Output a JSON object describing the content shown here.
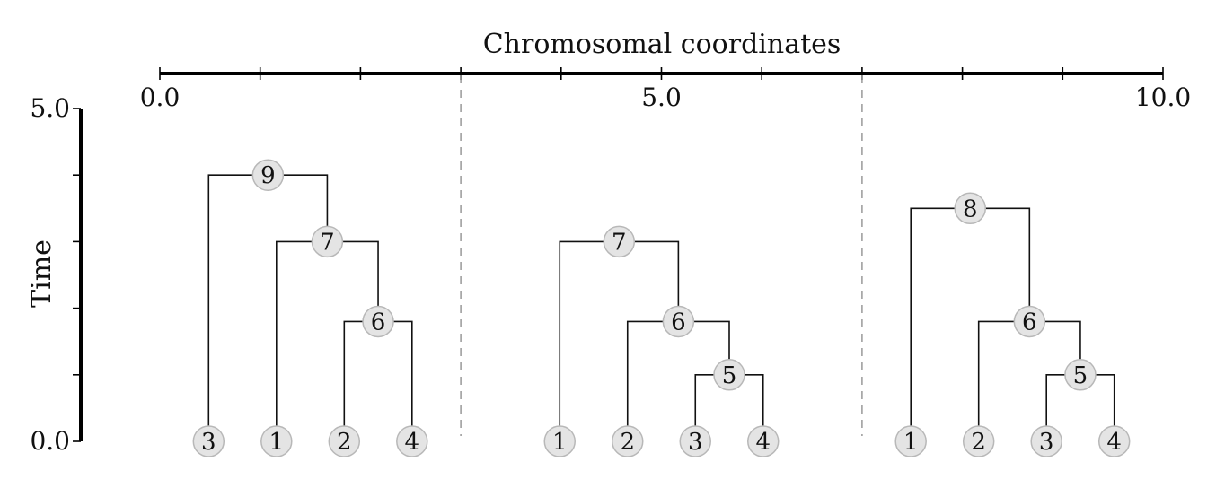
{
  "x_axis": {
    "title": "Chromosomal coordinates",
    "range": [
      0.0,
      10.0
    ],
    "tick_labels": [
      {
        "value": 0,
        "text": "0.0"
      },
      {
        "value": 5,
        "text": "5.0"
      },
      {
        "value": 10,
        "text": "10.0"
      }
    ],
    "minor_ticks": [
      1,
      2,
      3,
      4,
      6,
      7,
      8,
      9
    ]
  },
  "y_axis": {
    "title": "Time",
    "range": [
      0.0,
      5.0
    ],
    "tick_labels": [
      {
        "value": 5,
        "text": "5.0"
      },
      {
        "value": 0,
        "text": "0.0"
      }
    ],
    "minor_ticks": [
      1,
      2,
      3,
      4
    ]
  },
  "breakpoints": [
    3,
    7
  ],
  "trees": [
    {
      "interval": [
        0,
        3
      ],
      "leaves": [
        "3",
        "1",
        "2",
        "4"
      ],
      "nodes": [
        {
          "label": "3",
          "time": 0
        },
        {
          "label": "1",
          "time": 0
        },
        {
          "label": "2",
          "time": 0
        },
        {
          "label": "4",
          "time": 0
        },
        {
          "label": "6",
          "time": 1.8,
          "children": [
            "2",
            "4"
          ]
        },
        {
          "label": "7",
          "time": 3.0,
          "children": [
            "1",
            "6"
          ]
        },
        {
          "label": "9",
          "time": 4.0,
          "children": [
            "3",
            "7"
          ]
        }
      ]
    },
    {
      "interval": [
        3,
        7
      ],
      "leaves": [
        "1",
        "2",
        "3",
        "4"
      ],
      "nodes": [
        {
          "label": "1",
          "time": 0
        },
        {
          "label": "2",
          "time": 0
        },
        {
          "label": "3",
          "time": 0
        },
        {
          "label": "4",
          "time": 0
        },
        {
          "label": "5",
          "time": 1.0,
          "children": [
            "3",
            "4"
          ]
        },
        {
          "label": "6",
          "time": 1.8,
          "children": [
            "2",
            "5"
          ]
        },
        {
          "label": "7",
          "time": 3.0,
          "children": [
            "1",
            "6"
          ]
        }
      ]
    },
    {
      "interval": [
        7,
        10
      ],
      "leaves": [
        "1",
        "2",
        "3",
        "4"
      ],
      "nodes": [
        {
          "label": "1",
          "time": 0
        },
        {
          "label": "2",
          "time": 0
        },
        {
          "label": "3",
          "time": 0
        },
        {
          "label": "4",
          "time": 0
        },
        {
          "label": "5",
          "time": 1.0,
          "children": [
            "3",
            "4"
          ]
        },
        {
          "label": "6",
          "time": 1.8,
          "children": [
            "2",
            "5"
          ]
        },
        {
          "label": "8",
          "time": 3.5,
          "children": [
            "1",
            "6"
          ]
        }
      ]
    }
  ]
}
